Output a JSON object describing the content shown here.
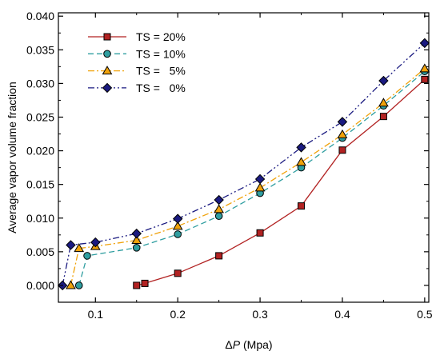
{
  "chart_data": {
    "type": "line",
    "xlabel_prefix": "Δ",
    "xlabel_var": "P",
    "xlabel_unit": " (Mpa)",
    "ylabel": "Average vapor volume fraction",
    "xlim": [
      0.055,
      0.505
    ],
    "ylim": [
      -0.0025,
      0.0405
    ],
    "x_ticks": [
      0.1,
      0.2,
      0.3,
      0.4,
      0.5
    ],
    "x_tick_labels": [
      "0.1",
      "0.2",
      "0.3",
      "0.4",
      "0.5"
    ],
    "y_ticks": [
      0.0,
      0.005,
      0.01,
      0.015,
      0.02,
      0.025,
      0.03,
      0.035,
      0.04
    ],
    "y_tick_labels": [
      "0.000",
      "0.005",
      "0.010",
      "0.015",
      "0.020",
      "0.025",
      "0.030",
      "0.035",
      "0.040"
    ],
    "grid": false,
    "legend_position": "top-left",
    "series": [
      {
        "name": "TS = 20%",
        "color": "#b22222",
        "marker": "square",
        "line": "solid",
        "x": [
          0.15,
          0.16,
          0.2,
          0.25,
          0.3,
          0.35,
          0.4,
          0.45,
          0.5
        ],
        "y": [
          0.0,
          0.0003,
          0.0018,
          0.0044,
          0.0078,
          0.0118,
          0.0201,
          0.0251,
          0.0306
        ]
      },
      {
        "name": "TS = 10%",
        "color": "#2f9ea0",
        "marker": "circle",
        "line": "dash",
        "x": [
          0.08,
          0.09,
          0.15,
          0.2,
          0.25,
          0.3,
          0.35,
          0.4,
          0.45,
          0.5
        ],
        "y": [
          0.0,
          0.0044,
          0.0056,
          0.0076,
          0.0103,
          0.0137,
          0.0175,
          0.0219,
          0.0267,
          0.0318
        ]
      },
      {
        "name": "TS =   5%",
        "color": "#f0a20a",
        "marker": "triangle",
        "line": "dashdot",
        "x": [
          0.07,
          0.08,
          0.1,
          0.15,
          0.2,
          0.25,
          0.3,
          0.35,
          0.4,
          0.45,
          0.5
        ],
        "y": [
          0.0,
          0.0055,
          0.0058,
          0.0067,
          0.0088,
          0.0113,
          0.0145,
          0.0183,
          0.0224,
          0.0271,
          0.0322
        ]
      },
      {
        "name": "TS =   0%",
        "color": "#1a1a80",
        "marker": "diamond",
        "line": "dashdotdot",
        "x": [
          0.06,
          0.07,
          0.1,
          0.15,
          0.2,
          0.25,
          0.3,
          0.35,
          0.4,
          0.45,
          0.5
        ],
        "y": [
          0.0,
          0.006,
          0.0064,
          0.0077,
          0.0099,
          0.0127,
          0.0158,
          0.0205,
          0.0243,
          0.0304,
          0.036
        ]
      }
    ]
  }
}
